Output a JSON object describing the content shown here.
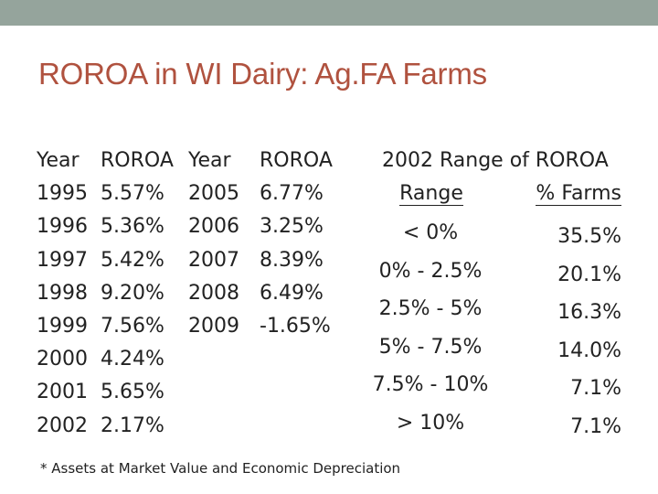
{
  "title": "ROROA in WI Dairy: Ag.FA Farms",
  "left_table": {
    "year_header_1": "Year",
    "roroa_header_1": "ROROA",
    "years_1": [
      "1995",
      "1996",
      "1997",
      "1998",
      "1999",
      "2000",
      "2001",
      "2002"
    ],
    "roroa_1": [
      "5.57%",
      "5.36%",
      "5.42%",
      "9.20%",
      "7.56%",
      "4.24%",
      "5.65%",
      "2.17%"
    ],
    "year_header_2": "Year",
    "roroa_header_2": "ROROA",
    "years_2": [
      "2005",
      "2006",
      "2007",
      "2008",
      "2009"
    ],
    "roroa_2": [
      "6.77%",
      "3.25%",
      "8.39%",
      "6.49%",
      "-1.65%"
    ]
  },
  "range_table": {
    "title": "2002 Range of ROROA",
    "range_header": "Range",
    "farms_header": "% Farms",
    "rows": [
      {
        "range": "< 0%",
        "pct": "35.5%"
      },
      {
        "range": "0% - 2.5%",
        "pct": "20.1%"
      },
      {
        "range": "2.5% - 5%",
        "pct": "16.3%"
      },
      {
        "range": "5% - 7.5%",
        "pct": "14.0%"
      },
      {
        "range": "7.5% - 10%",
        "pct": "7.1%"
      },
      {
        "range": "> 10%",
        "pct": "7.1%"
      }
    ]
  },
  "footnote": "* Assets at Market Value and Economic Depreciation",
  "colors": {
    "title": "#b0523f",
    "top_band": "#95a49c"
  }
}
